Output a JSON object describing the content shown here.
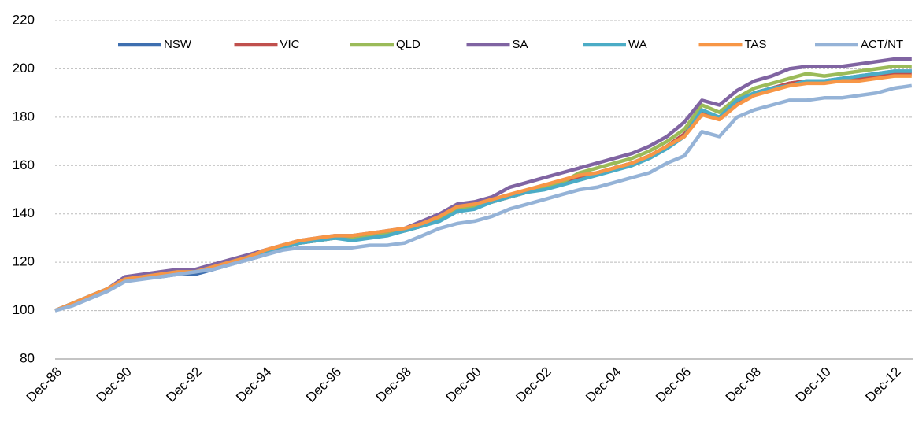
{
  "chart_data": {
    "type": "line",
    "categories": [
      "Dec-88",
      null,
      null,
      null,
      "Dec-90",
      null,
      null,
      null,
      "Dec-92",
      null,
      null,
      null,
      "Dec-94",
      null,
      null,
      null,
      "Dec-96",
      null,
      null,
      null,
      "Dec-98",
      null,
      null,
      null,
      "Dec-00",
      null,
      null,
      null,
      "Dec-02",
      null,
      null,
      null,
      "Dec-04",
      null,
      null,
      null,
      "Dec-06",
      null,
      null,
      null,
      "Dec-08",
      null,
      null,
      null,
      "Dec-10",
      null,
      null,
      null,
      "Dec-12",
      null
    ],
    "series": [
      {
        "name": "NSW",
        "color": "#3e6fb0",
        "values": [
          100,
          103,
          106,
          109,
          113,
          114,
          114,
          115,
          115,
          117,
          119,
          121,
          123,
          126,
          128,
          129,
          130,
          130,
          131,
          132,
          133,
          135,
          138,
          142,
          143,
          145,
          147,
          149,
          151,
          153,
          155,
          157,
          159,
          161,
          164,
          168,
          173,
          182,
          180,
          186,
          190,
          192,
          194,
          195,
          195,
          196,
          197,
          198,
          199,
          199
        ]
      },
      {
        "name": "VIC",
        "color": "#c0504d",
        "values": [
          100,
          103,
          106,
          109,
          113,
          114,
          115,
          116,
          117,
          118,
          120,
          122,
          124,
          126,
          128,
          129,
          130,
          131,
          131,
          132,
          133,
          135,
          138,
          142,
          143,
          145,
          147,
          149,
          151,
          153,
          155,
          157,
          159,
          161,
          164,
          168,
          173,
          182,
          180,
          186,
          190,
          192,
          194,
          195,
          195,
          195,
          196,
          197,
          198,
          198
        ]
      },
      {
        "name": "QLD",
        "color": "#9bbb59",
        "values": [
          100,
          103,
          106,
          109,
          113,
          114,
          115,
          116,
          117,
          118,
          120,
          122,
          124,
          126,
          128,
          129,
          130,
          130,
          131,
          132,
          133,
          135,
          138,
          142,
          143,
          145,
          147,
          149,
          151,
          153,
          157,
          159,
          161,
          163,
          166,
          170,
          175,
          185,
          182,
          188,
          192,
          194,
          196,
          198,
          197,
          198,
          199,
          200,
          201,
          201
        ]
      },
      {
        "name": "SA",
        "color": "#8064a2",
        "values": [
          100,
          103,
          106,
          109,
          114,
          115,
          116,
          117,
          117,
          119,
          121,
          123,
          125,
          127,
          129,
          130,
          131,
          131,
          132,
          133,
          134,
          137,
          140,
          144,
          145,
          147,
          151,
          153,
          155,
          157,
          159,
          161,
          163,
          165,
          168,
          172,
          178,
          187,
          185,
          191,
          195,
          197,
          200,
          201,
          201,
          201,
          202,
          203,
          204,
          204
        ]
      },
      {
        "name": "WA",
        "color": "#4bacc6",
        "values": [
          100,
          103,
          106,
          109,
          113,
          114,
          115,
          116,
          116,
          118,
          120,
          122,
          124,
          126,
          128,
          129,
          130,
          129,
          130,
          131,
          133,
          135,
          137,
          141,
          142,
          145,
          147,
          149,
          150,
          152,
          154,
          156,
          158,
          160,
          163,
          167,
          172,
          183,
          180,
          187,
          190,
          192,
          193,
          195,
          195,
          196,
          197,
          198,
          199,
          199
        ]
      },
      {
        "name": "TAS",
        "color": "#f79646",
        "values": [
          100,
          103,
          106,
          109,
          113,
          114,
          115,
          116,
          116,
          118,
          120,
          122,
          125,
          127,
          129,
          130,
          131,
          131,
          132,
          133,
          134,
          136,
          139,
          143,
          144,
          146,
          148,
          150,
          152,
          154,
          156,
          157,
          159,
          161,
          164,
          168,
          172,
          181,
          179,
          185,
          189,
          191,
          193,
          194,
          194,
          195,
          195,
          196,
          197,
          197
        ]
      },
      {
        "name": "ACT/NT",
        "color": "#95b3d7",
        "values": [
          100,
          102,
          105,
          108,
          112,
          113,
          114,
          115,
          116,
          117,
          119,
          121,
          123,
          125,
          126,
          126,
          126,
          126,
          127,
          127,
          128,
          131,
          134,
          136,
          137,
          139,
          142,
          144,
          146,
          148,
          150,
          151,
          153,
          155,
          157,
          161,
          164,
          174,
          172,
          180,
          183,
          185,
          187,
          187,
          188,
          188,
          189,
          190,
          192,
          193
        ]
      }
    ],
    "ylim": [
      80,
      220
    ],
    "yticks": [
      80,
      100,
      120,
      140,
      160,
      180,
      200,
      220
    ],
    "grid": true,
    "legend": "top"
  }
}
